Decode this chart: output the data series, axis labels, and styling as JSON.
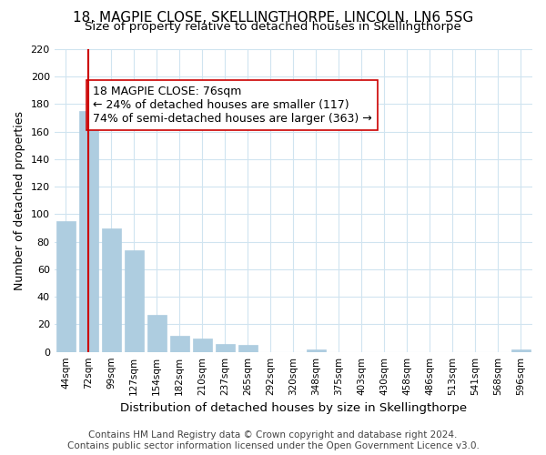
{
  "title": "18, MAGPIE CLOSE, SKELLINGTHORPE, LINCOLN, LN6 5SG",
  "subtitle": "Size of property relative to detached houses in Skellingthorpe",
  "xlabel": "Distribution of detached houses by size in Skellingthorpe",
  "ylabel": "Number of detached properties",
  "bar_color": "#aecde0",
  "bar_edge_color": "#aecde0",
  "vline_color": "#cc0000",
  "vline_x": 1,
  "annotation_box_text": "18 MAGPIE CLOSE: 76sqm\n← 24% of detached houses are smaller (117)\n74% of semi-detached houses are larger (363) →",
  "annotation_fontsize": 9,
  "categories": [
    "44sqm",
    "72sqm",
    "99sqm",
    "127sqm",
    "154sqm",
    "182sqm",
    "210sqm",
    "237sqm",
    "265sqm",
    "292sqm",
    "320sqm",
    "348sqm",
    "375sqm",
    "403sqm",
    "430sqm",
    "458sqm",
    "486sqm",
    "513sqm",
    "541sqm",
    "568sqm",
    "596sqm"
  ],
  "values": [
    95,
    175,
    90,
    74,
    27,
    12,
    10,
    6,
    5,
    0,
    0,
    2,
    0,
    0,
    0,
    0,
    0,
    0,
    0,
    0,
    2
  ],
  "ylim": [
    0,
    220
  ],
  "yticks": [
    0,
    20,
    40,
    60,
    80,
    100,
    120,
    140,
    160,
    180,
    200,
    220
  ],
  "grid_color": "#d0e4f0",
  "footer_text": "Contains HM Land Registry data © Crown copyright and database right 2024.\nContains public sector information licensed under the Open Government Licence v3.0.",
  "title_fontsize": 11,
  "subtitle_fontsize": 9.5,
  "xlabel_fontsize": 9.5,
  "ylabel_fontsize": 9,
  "footer_fontsize": 7.5
}
